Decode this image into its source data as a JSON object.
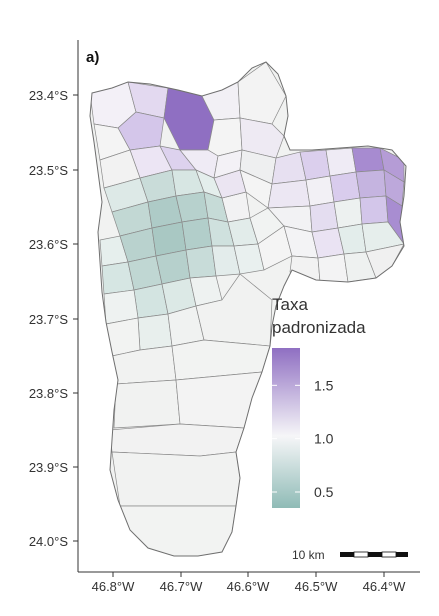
{
  "panel_label": "a)",
  "lat_labels": [
    "23.4°S",
    "23.5°S",
    "23.6°S",
    "23.7°S",
    "23.8°S",
    "23.9°S",
    "24.0°S"
  ],
  "lon_labels": [
    "46.8°W",
    "46.7°W",
    "46.6°W",
    "46.5°W",
    "46.4°W"
  ],
  "legend": {
    "title_line1": "Taxa",
    "title_line2": "padronizada",
    "tick_labels": [
      "1.5",
      "1.0",
      "0.5"
    ],
    "tick_values": [
      1.5,
      1.0,
      0.5
    ],
    "range": [
      0.35,
      1.85
    ],
    "color_high": "#8f6fc2",
    "color_mid": "#f6f6f8",
    "color_low": "#8fbbb6"
  },
  "scale_bar": {
    "label": "10 km"
  },
  "colors": {
    "high": "#8f6fc2",
    "mid_high": "#c5b4e0",
    "light_purple": "#e6def2",
    "neutral": "#f1f2f1",
    "light_teal": "#d7e6e3",
    "teal": "#b4d0cc",
    "border": "#7a7a7a"
  }
}
